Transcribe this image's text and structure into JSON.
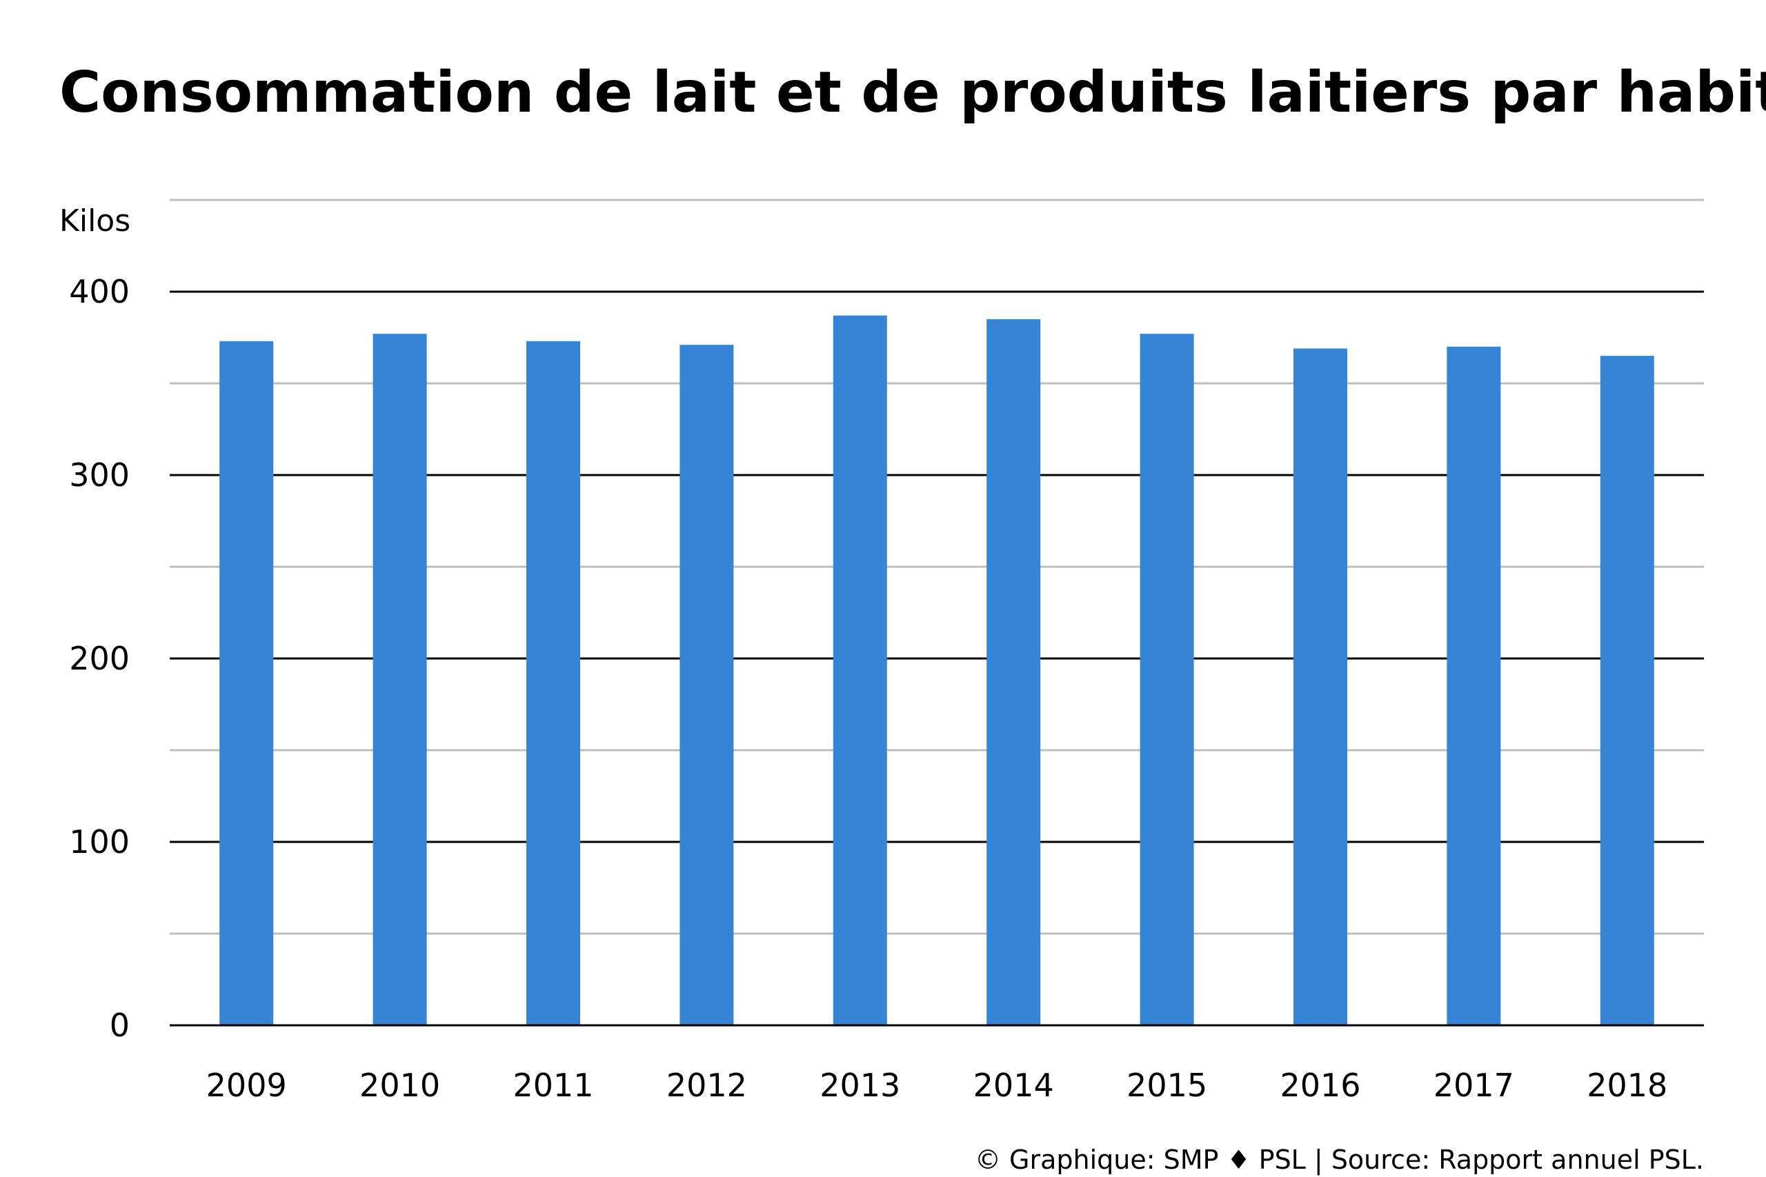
{
  "chart_data": {
    "type": "bar",
    "title": "Consommation de lait et de produits laitiers par habitant",
    "ylabel": "Kilos",
    "xlabel": "",
    "categories": [
      "2009",
      "2010",
      "2011",
      "2012",
      "2013",
      "2014",
      "2015",
      "2016",
      "2017",
      "2018"
    ],
    "values": [
      373,
      377,
      373,
      371,
      387,
      385,
      377,
      369,
      370,
      365
    ],
    "ylim": [
      0,
      450
    ],
    "yticks": [
      0,
      100,
      200,
      300,
      400
    ],
    "ytick_labels": [
      "0",
      "100",
      "200",
      "300",
      "400"
    ],
    "minor_gridlines": [
      50,
      150,
      250,
      350,
      450
    ],
    "grid": true,
    "legend": "none",
    "colors": {
      "bar": "#3584d5",
      "major_grid": "#000000",
      "minor_grid": "#bdbdbd"
    }
  },
  "source": "© Graphique: SMP ♦ PSL | Source: Rapport annuel PSL."
}
